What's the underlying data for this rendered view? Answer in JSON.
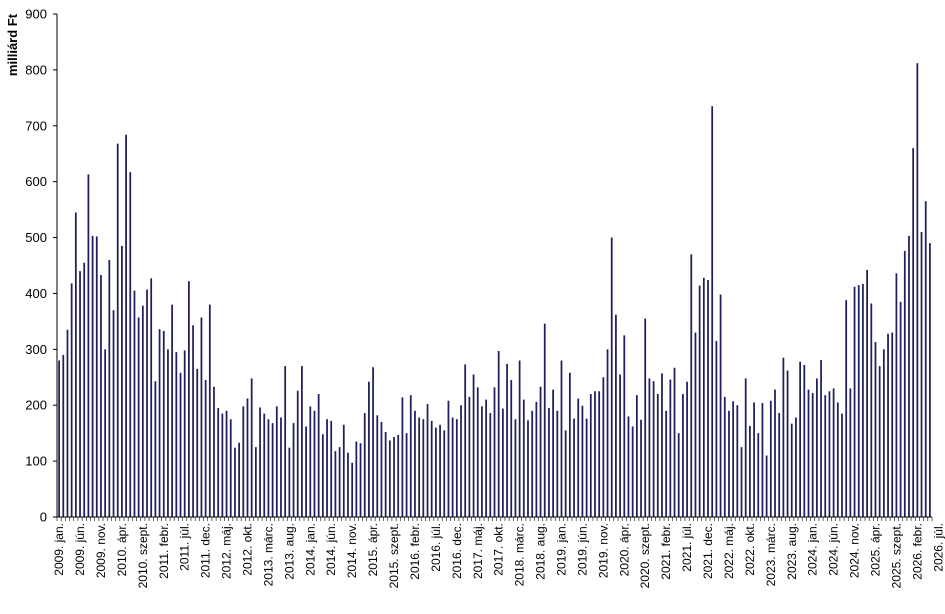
{
  "chart_data": {
    "type": "bar",
    "title": "",
    "xlabel": "",
    "ylabel": "milliárd Ft",
    "ylim": [
      0,
      900
    ],
    "yticks": [
      0,
      100,
      200,
      300,
      400,
      500,
      600,
      700,
      800,
      900
    ],
    "grid": false,
    "legend": "none",
    "bar_color": "#1f1f5c",
    "tick_labels": [
      "2009. jan.",
      "2009. jún.",
      "2009. nov.",
      "2010. ápr.",
      "2010. szept.",
      "2011. febr.",
      "2011. júl.",
      "2011. dec.",
      "2012. máj.",
      "2012. okt.",
      "2013. márc.",
      "2013. aug.",
      "2014. jan.",
      "2014. jún.",
      "2014. nov.",
      "2015. ápr.",
      "2015. szept.",
      "2016. febr.",
      "2016. júl.",
      "2016. dec.",
      "2017. máj.",
      "2017. okt.",
      "2018. márc.",
      "2018. aug.",
      "2019. jan.",
      "2019. jún.",
      "2019. nov.",
      "2020. ápr.",
      "2020. szept.",
      "2021. febr.",
      "2021. júl.",
      "2021. dec.",
      "2022. máj.",
      "2022. okt.",
      "2023. márc.",
      "2023. aug.",
      "2024. jan.",
      "2024. jún.",
      "2024. nov.",
      "2025. ápr.",
      "2025. szept.",
      "2026. febr.",
      "2026. júl."
    ],
    "values": [
      280,
      290,
      335,
      418,
      545,
      440,
      455,
      613,
      503,
      502,
      433,
      300,
      460,
      370,
      668,
      485,
      684,
      617,
      405,
      357,
      378,
      407,
      427,
      243,
      336,
      333,
      300,
      380,
      295,
      258,
      298,
      422,
      343,
      265,
      357,
      245,
      380,
      233,
      195,
      185,
      190,
      175,
      124,
      133,
      198,
      212,
      248,
      125,
      196,
      185,
      175,
      168,
      198,
      178,
      270,
      124,
      168,
      226,
      270,
      162,
      198,
      190,
      220,
      148,
      175,
      172,
      118,
      125,
      165,
      115,
      97,
      135,
      132,
      186,
      242,
      268,
      182,
      170,
      152,
      137,
      143,
      147,
      214,
      150,
      218,
      190,
      178,
      175,
      202,
      172,
      160,
      165,
      155,
      208,
      178,
      175,
      200,
      273,
      215,
      255,
      232,
      198,
      210,
      186,
      232,
      297,
      194,
      274,
      245,
      175,
      280,
      210,
      173,
      190,
      206,
      233,
      346,
      195,
      228,
      190,
      280,
      155,
      258,
      176,
      212,
      199,
      176,
      220,
      225,
      225,
      250,
      300,
      500,
      362,
      255,
      325,
      180,
      162,
      218,
      174,
      355,
      248,
      243,
      220,
      257,
      190,
      246,
      267,
      150,
      220,
      242,
      470,
      330,
      414,
      428,
      424,
      735,
      315,
      398,
      215,
      190,
      207,
      200,
      125,
      248,
      163,
      205,
      150,
      204,
      110,
      208,
      228,
      186,
      285,
      262,
      167,
      178,
      278,
      272,
      228,
      222,
      248,
      281,
      218,
      225,
      230,
      205,
      185,
      388,
      230,
      412,
      415,
      417,
      442,
      382,
      313,
      270,
      300,
      328,
      330,
      436,
      385,
      476,
      503,
      660,
      812,
      510,
      565,
      490
    ]
  }
}
